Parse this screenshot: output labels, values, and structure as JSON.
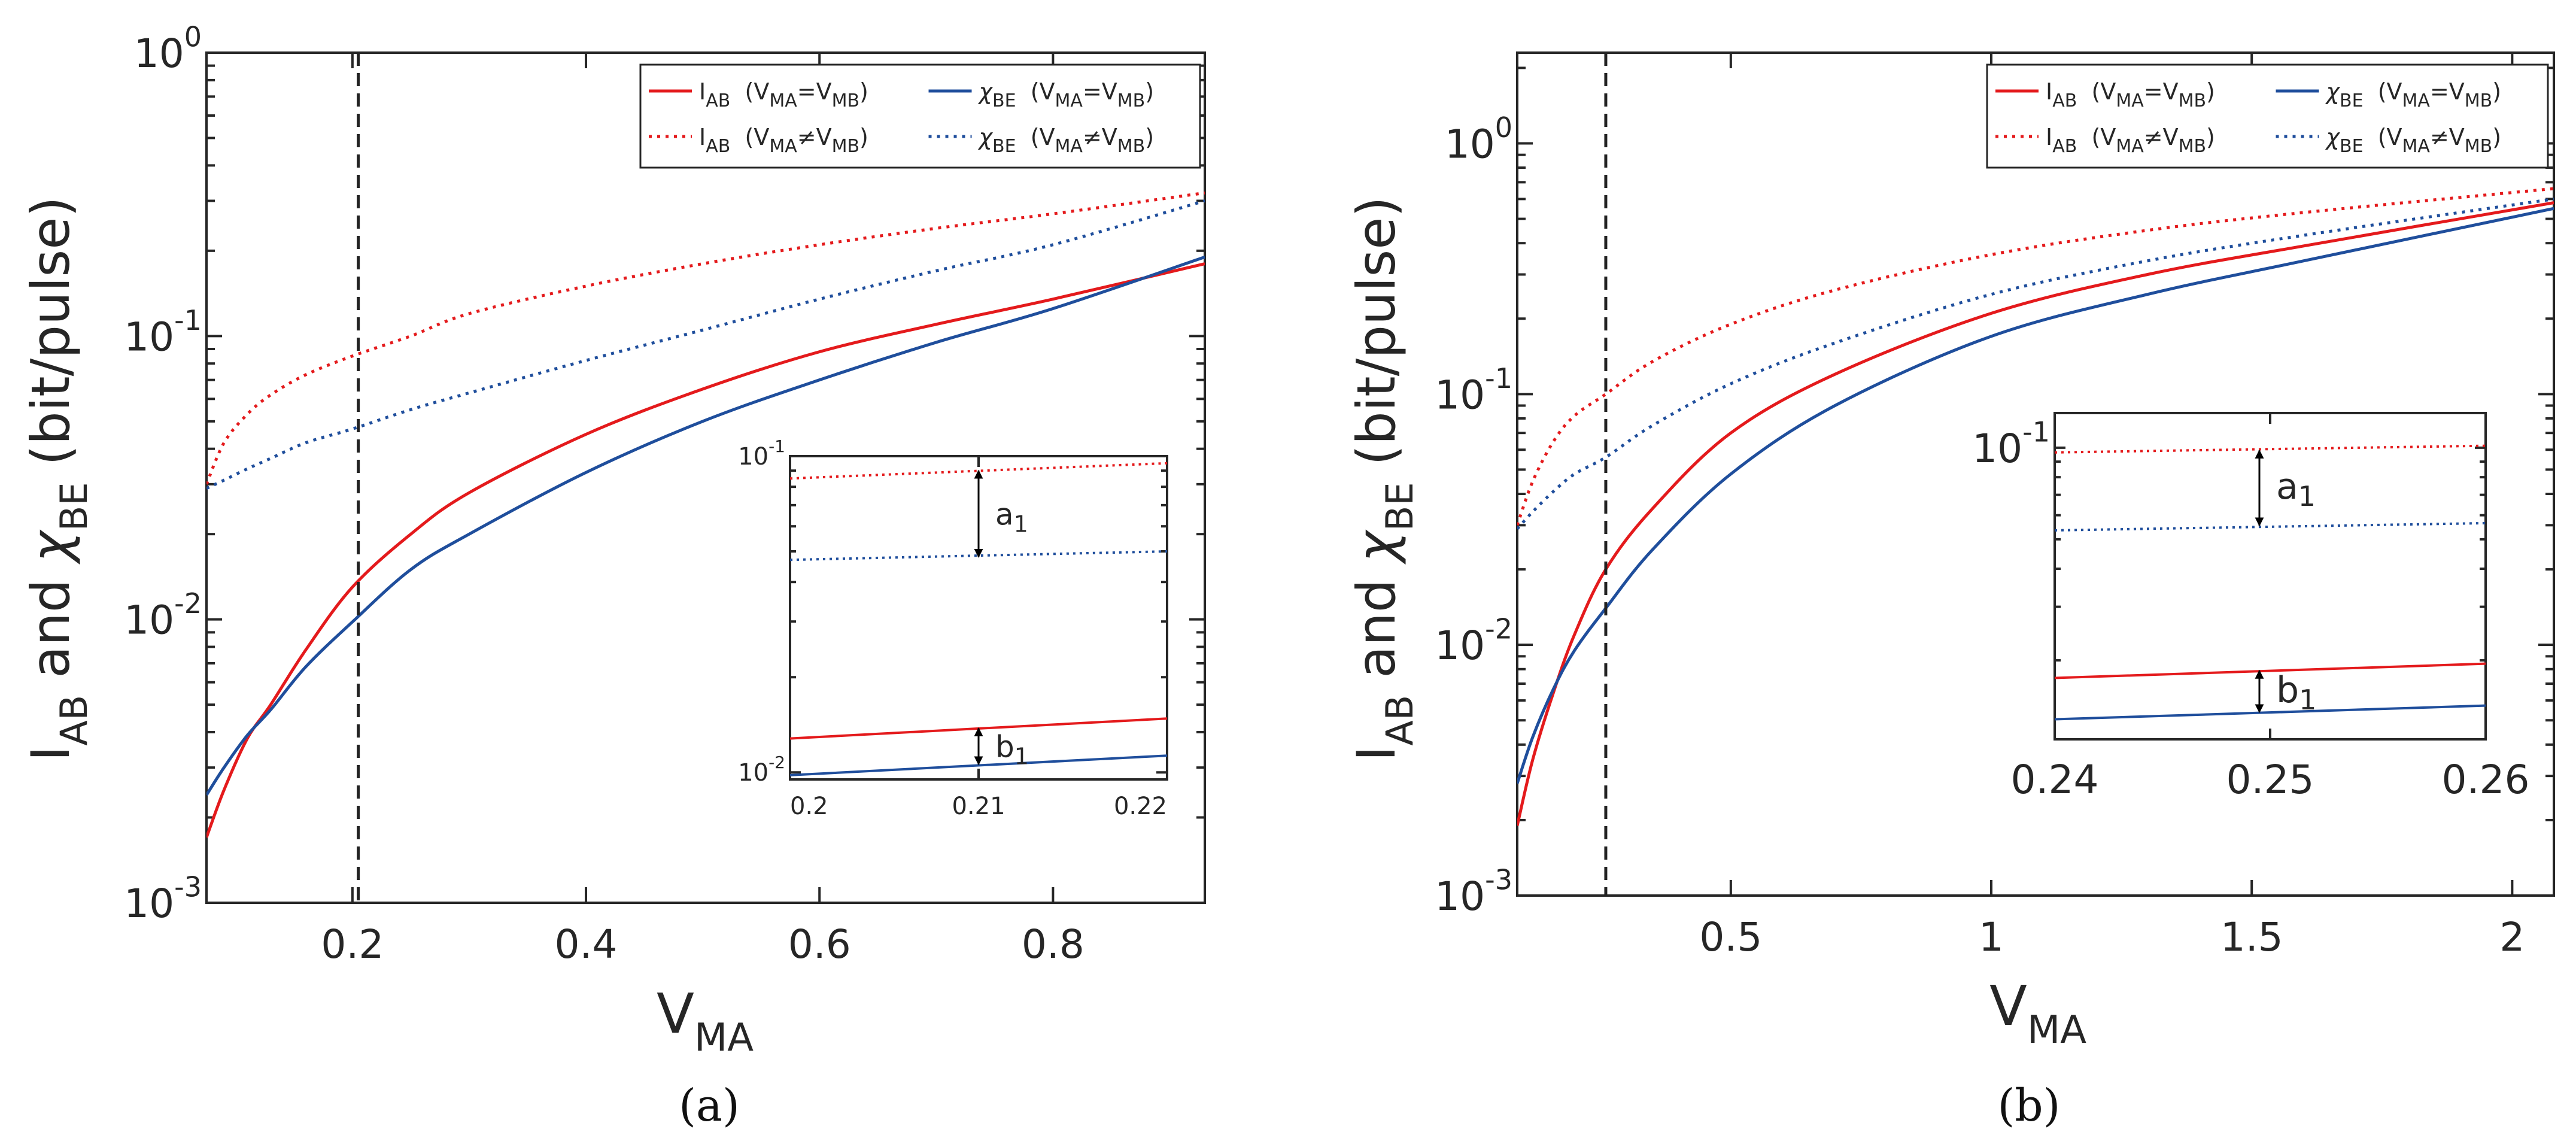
{
  "chart_data": [
    {
      "panel_label": "(a)",
      "type": "line",
      "xlabel": {
        "main": "V",
        "sub": "MA"
      },
      "ylabel": {
        "p1": "I",
        "p1sub": "AB",
        "p2": " and ",
        "p3": "χ",
        "p3sub": "BE",
        "p4": " (bit/pulse)"
      },
      "xlim": [
        0.075,
        0.93
      ],
      "ylim": [
        0.001,
        1
      ],
      "yscale": "log",
      "xticks": [
        0.2,
        0.4,
        0.6,
        0.8
      ],
      "xticklabels": [
        "0.2",
        "0.4",
        "0.6",
        "0.8"
      ],
      "yticks": [
        0.001,
        0.01,
        0.1,
        1
      ],
      "yticklabels": [
        {
          "b": "10",
          "e": "-3"
        },
        {
          "b": "10",
          "e": "-2"
        },
        {
          "b": "10",
          "e": "-1"
        },
        {
          "b": "10",
          "e": "0"
        }
      ],
      "vline_x": 0.205,
      "legend": {
        "position": "top-right",
        "entries": [
          {
            "series": 0,
            "sym": "I",
            "sub": "AB",
            "cond": "(V",
            "csub1": "MA",
            "op": "=",
            "cv": "V",
            "csub2": "MB",
            "close": ")"
          },
          {
            "series": 2,
            "sym": "χ",
            "sub": "BE",
            "cond": "(V",
            "csub1": "MA",
            "op": "=",
            "cv": "V",
            "csub2": "MB",
            "close": ")"
          },
          {
            "series": 1,
            "sym": "I",
            "sub": "AB",
            "cond": "(V",
            "csub1": "MA",
            "op": "≠",
            "cv": "V",
            "csub2": "MB",
            "close": ")"
          },
          {
            "series": 3,
            "sym": "χ",
            "sub": "BE",
            "cond": "(V",
            "csub1": "MA",
            "op": "≠",
            "cv": "V",
            "csub2": "MB",
            "close": ")"
          }
        ]
      },
      "series": [
        {
          "name": "I_AB (V_MA=V_MB)",
          "color": "#e41a1c",
          "style": "solid",
          "x": [
            0.075,
            0.09,
            0.11,
            0.13,
            0.16,
            0.2,
            0.25,
            0.3,
            0.4,
            0.5,
            0.6,
            0.7,
            0.8,
            0.93
          ],
          "y": [
            0.0017,
            0.0025,
            0.0038,
            0.005,
            0.0078,
            0.013,
            0.02,
            0.028,
            0.045,
            0.065,
            0.088,
            0.11,
            0.135,
            0.18
          ]
        },
        {
          "name": "I_AB (V_MA≠V_MB)",
          "color": "#e41a1c",
          "style": "dotted",
          "x": [
            0.075,
            0.09,
            0.11,
            0.13,
            0.16,
            0.2,
            0.25,
            0.3,
            0.4,
            0.5,
            0.6,
            0.7,
            0.8,
            0.93
          ],
          "y": [
            0.03,
            0.042,
            0.053,
            0.062,
            0.073,
            0.085,
            0.1,
            0.12,
            0.15,
            0.18,
            0.21,
            0.24,
            0.27,
            0.32
          ]
        },
        {
          "name": "χ_BE (V_MA=V_MB)",
          "color": "#1f4e9c",
          "style": "solid",
          "x": [
            0.075,
            0.09,
            0.11,
            0.13,
            0.16,
            0.2,
            0.25,
            0.3,
            0.4,
            0.5,
            0.6,
            0.7,
            0.8,
            0.93
          ],
          "y": [
            0.0024,
            0.003,
            0.0039,
            0.0048,
            0.0068,
            0.0098,
            0.015,
            0.02,
            0.033,
            0.05,
            0.07,
            0.095,
            0.125,
            0.19
          ]
        },
        {
          "name": "χ_BE (V_MA≠V_MB)",
          "color": "#1f4e9c",
          "style": "dotted",
          "x": [
            0.075,
            0.09,
            0.11,
            0.13,
            0.16,
            0.2,
            0.25,
            0.3,
            0.4,
            0.5,
            0.6,
            0.7,
            0.8,
            0.93
          ],
          "y": [
            0.029,
            0.031,
            0.034,
            0.037,
            0.042,
            0.047,
            0.055,
            0.063,
            0.082,
            0.105,
            0.135,
            0.17,
            0.21,
            0.3
          ]
        }
      ],
      "inset": {
        "xlim": [
          0.2,
          0.22
        ],
        "ylim": [
          0.0095,
          0.1
        ],
        "yscale": "log",
        "xticks": [
          0.2,
          0.21,
          0.22
        ],
        "xticklabels": [
          "0.2",
          "0.21",
          "0.22"
        ],
        "yticks": [
          0.01,
          0.1
        ],
        "yticklabels": [
          {
            "b": "10",
            "e": "-2"
          },
          {
            "b": "10",
            "e": "-1"
          }
        ],
        "series": [
          {
            "color": "#e41a1c",
            "style": "dotted",
            "x": [
              0.2,
              0.22
            ],
            "y": [
              0.085,
              0.095
            ]
          },
          {
            "color": "#1f4e9c",
            "style": "dotted",
            "x": [
              0.2,
              0.22
            ],
            "y": [
              0.047,
              0.05
            ]
          },
          {
            "color": "#e41a1c",
            "style": "solid",
            "x": [
              0.2,
              0.22
            ],
            "y": [
              0.0128,
              0.0148
            ]
          },
          {
            "color": "#1f4e9c",
            "style": "solid",
            "x": [
              0.2,
              0.22
            ],
            "y": [
              0.0098,
              0.0113
            ]
          }
        ],
        "annotations": [
          {
            "label": "a",
            "sub": "1",
            "x": 0.21,
            "y_top": 0.09,
            "y_bot": 0.048
          },
          {
            "label": "b",
            "sub": "1",
            "x": 0.21,
            "y_top": 0.0138,
            "y_bot": 0.0106
          }
        ]
      }
    },
    {
      "panel_label": "(b)",
      "type": "line",
      "xlabel": {
        "main": "V",
        "sub": "MA"
      },
      "ylabel": {
        "p1": "I",
        "p1sub": "AB",
        "p2": " and ",
        "p3": "χ",
        "p3sub": "BE",
        "p4": " (bit/pulse)"
      },
      "xlim": [
        0.09,
        2.08
      ],
      "ylim": [
        0.001,
        2.3
      ],
      "yscale": "log",
      "xticks": [
        0.5,
        1,
        1.5,
        2
      ],
      "xticklabels": [
        "0.5",
        "1",
        "1.5",
        "2"
      ],
      "yticks": [
        0.001,
        0.01,
        0.1,
        1
      ],
      "yticklabels": [
        {
          "b": "10",
          "e": "-3"
        },
        {
          "b": "10",
          "e": "-2"
        },
        {
          "b": "10",
          "e": "-1"
        },
        {
          "b": "10",
          "e": "0"
        }
      ],
      "vline_x": 0.26,
      "legend": {
        "position": "top-right",
        "entries": [
          {
            "series": 0,
            "sym": "I",
            "sub": "AB",
            "cond": "(V",
            "csub1": "MA",
            "op": "=",
            "cv": "V",
            "csub2": "MB",
            "close": ")"
          },
          {
            "series": 2,
            "sym": "χ",
            "sub": "BE",
            "cond": "(V",
            "csub1": "MA",
            "op": "=",
            "cv": "V",
            "csub2": "MB",
            "close": ")"
          },
          {
            "series": 1,
            "sym": "I",
            "sub": "AB",
            "cond": "(V",
            "csub1": "MA",
            "op": "≠",
            "cv": "V",
            "csub2": "MB",
            "close": ")"
          },
          {
            "series": 3,
            "sym": "χ",
            "sub": "BE",
            "cond": "(V",
            "csub1": "MA",
            "op": "≠",
            "cv": "V",
            "csub2": "MB",
            "close": ")"
          }
        ]
      },
      "series": [
        {
          "name": "I_AB (V_MA=V_MB)",
          "color": "#e41a1c",
          "style": "solid",
          "x": [
            0.09,
            0.12,
            0.16,
            0.2,
            0.26,
            0.35,
            0.5,
            0.7,
            1.0,
            1.3,
            1.6,
            2.08
          ],
          "y": [
            0.0019,
            0.0035,
            0.0065,
            0.011,
            0.02,
            0.035,
            0.07,
            0.12,
            0.21,
            0.3,
            0.39,
            0.58
          ]
        },
        {
          "name": "I_AB (V_MA≠V_MB)",
          "color": "#e41a1c",
          "style": "dotted",
          "x": [
            0.09,
            0.12,
            0.16,
            0.2,
            0.26,
            0.35,
            0.5,
            0.7,
            1.0,
            1.3,
            1.6,
            2.08
          ],
          "y": [
            0.03,
            0.045,
            0.065,
            0.082,
            0.1,
            0.135,
            0.19,
            0.26,
            0.36,
            0.45,
            0.53,
            0.66
          ]
        },
        {
          "name": "χ_BE (V_MA=V_MB)",
          "color": "#1f4e9c",
          "style": "solid",
          "x": [
            0.09,
            0.12,
            0.16,
            0.2,
            0.26,
            0.35,
            0.5,
            0.7,
            1.0,
            1.3,
            1.6,
            2.08
          ],
          "y": [
            0.0028,
            0.0043,
            0.0067,
            0.0095,
            0.014,
            0.024,
            0.048,
            0.09,
            0.17,
            0.25,
            0.34,
            0.55
          ]
        },
        {
          "name": "χ_BE (V_MA≠V_MB)",
          "color": "#1f4e9c",
          "style": "dotted",
          "x": [
            0.09,
            0.12,
            0.16,
            0.2,
            0.26,
            0.35,
            0.5,
            0.7,
            1.0,
            1.3,
            1.6,
            2.08
          ],
          "y": [
            0.029,
            0.034,
            0.041,
            0.048,
            0.056,
            0.075,
            0.11,
            0.16,
            0.25,
            0.34,
            0.43,
            0.6
          ]
        }
      ],
      "inset": {
        "xlim": [
          0.24,
          0.26
        ],
        "ylim": [
          0.011,
          0.13
        ],
        "yscale": "log",
        "xticks": [
          0.24,
          0.25,
          0.26
        ],
        "xticklabels": [
          "0.24",
          "0.25",
          "0.26"
        ],
        "yticks": [
          0.1
        ],
        "yticklabels": [
          {
            "b": "10",
            "e": "-1"
          }
        ],
        "series": [
          {
            "color": "#e41a1c",
            "style": "dotted",
            "x": [
              0.24,
              0.26
            ],
            "y": [
              0.0965,
              0.1015
            ]
          },
          {
            "color": "#1f4e9c",
            "style": "dotted",
            "x": [
              0.24,
              0.26
            ],
            "y": [
              0.0535,
              0.0565
            ]
          },
          {
            "color": "#e41a1c",
            "style": "solid",
            "x": [
              0.24,
              0.26
            ],
            "y": [
              0.0175,
              0.0195
            ]
          },
          {
            "color": "#1f4e9c",
            "style": "solid",
            "x": [
              0.24,
              0.26
            ],
            "y": [
              0.0128,
              0.0142
            ]
          }
        ],
        "annotations": [
          {
            "label": "a",
            "sub": "1",
            "x": 0.2495,
            "y_top": 0.098,
            "y_bot": 0.0555
          },
          {
            "label": "b",
            "sub": "1",
            "x": 0.2495,
            "y_top": 0.0185,
            "y_bot": 0.0135
          }
        ]
      }
    }
  ]
}
